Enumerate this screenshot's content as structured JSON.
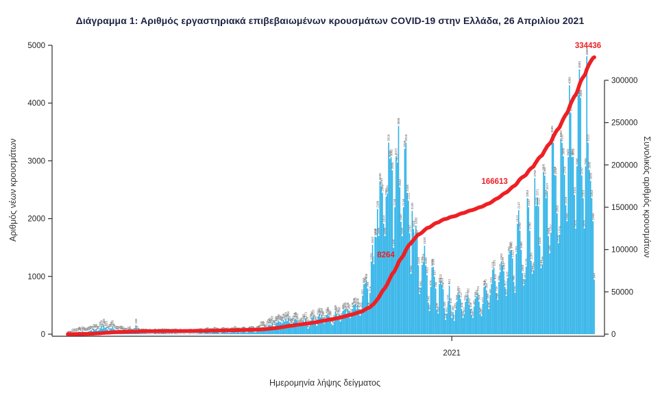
{
  "colors": {
    "bars": "#2fb3e8",
    "line": "#ed2024",
    "annotations": "#ed2024",
    "bar_labels": "#4d4d4d",
    "axis": "#2b2b2b",
    "tick_text": "#222222",
    "title": "#1b2240"
  },
  "chart_data": {
    "type": "bar",
    "title": "Διάγραμμα 1: Αριθμός εργαστηριακά επιβεβαιωμένων κρουσμάτων COVID-19 στην Ελλάδα, 26 Απριλίου 2021",
    "xlabel": "Ημερομηνία λήψης δείγματος",
    "ylabel_left": "Αριθμός νέων κρουσμάτων",
    "ylabel_right": "Συνολικός αριθμός κρουσμάτων",
    "x_start": "2020-02-26",
    "x_end": "2021-04-26",
    "ylim_left": [
      0,
      5000
    ],
    "ylim_right": [
      0,
      341000
    ],
    "grid": false,
    "legend": "none",
    "axes": {
      "left_ticks": [
        0,
        1000,
        2000,
        3000,
        4000,
        5000
      ],
      "right_ticks": [
        0,
        50000,
        100000,
        150000,
        200000,
        250000,
        300000
      ],
      "x_tick_labels": [
        {
          "label": "2021",
          "day_index": 310
        }
      ]
    },
    "annotations": [
      {
        "text": "8264",
        "fx": 0.604,
        "py": 375
      },
      {
        "text": "166613",
        "fx": 0.81,
        "py": 268
      },
      {
        "text": "334436",
        "fx": 0.987,
        "py": 70
      }
    ],
    "series": [
      {
        "name": "Αριθμός νέων κρουσμάτων",
        "type": "bar",
        "axis": "left",
        "values": [
          1,
          3,
          4,
          7,
          10,
          14,
          21,
          17,
          31,
          45,
          40,
          21,
          55,
          35,
          37,
          31,
          35,
          48,
          60,
          71,
          48,
          94,
          78,
          95,
          56,
          71,
          102,
          129,
          95,
          156,
          113,
          121,
          82,
          61,
          99,
          102,
          129,
          99,
          77,
          60,
          62,
          52,
          71,
          56,
          60,
          33,
          31,
          25,
          22,
          47,
          56,
          15,
          12,
          10,
          26,
          156,
          59,
          28,
          16,
          11,
          18,
          10,
          15,
          10,
          12,
          6,
          10,
          8,
          4,
          6,
          15,
          17,
          8,
          14,
          12,
          10,
          15,
          22,
          14,
          16,
          10,
          10,
          15,
          5,
          21,
          3,
          12,
          18,
          12,
          9,
          6,
          10,
          3,
          8,
          11,
          8,
          2,
          7,
          11,
          15,
          6,
          9,
          12,
          8,
          13,
          14,
          19,
          21,
          23,
          11,
          15,
          20,
          29,
          38,
          18,
          23,
          16,
          27,
          34,
          43,
          29,
          31,
          21,
          10,
          23,
          38,
          42,
          31,
          24,
          36,
          21,
          26,
          30,
          33,
          41,
          60,
          29,
          37,
          33,
          27,
          35,
          39,
          49,
          43,
          26,
          31,
          45,
          50,
          56,
          62,
          44,
          31,
          35,
          58,
          65,
          78,
          110,
          121,
          110,
          75,
          97,
          124,
          153,
          169,
          151,
          203,
          126,
          135,
          196,
          204,
          230,
          217,
          208,
          192,
          246,
          217,
          269,
          228,
          284,
          201,
          157,
          168,
          207,
          258,
          270,
          244,
          177,
          133,
          158,
          177,
          241,
          209,
          271,
          188,
          95,
          137,
          233,
          286,
          312,
          226,
          194,
          142,
          310,
          346,
          293,
          339,
          286,
          186,
          218,
          332,
          358,
          312,
          286,
          177,
          155,
          218,
          390,
          354,
          312,
          358,
          218,
          255,
          401,
          423,
          439,
          358,
          436,
          411,
          280,
          326,
          438,
          508,
          523,
          435,
          508,
          438,
          320,
          434,
          667,
          865,
          882,
          935,
          790,
          438,
          714,
          1259,
          1547,
          1211,
          1690,
          1678,
          2166,
          1698,
          2646,
          2561,
          2448,
          1914,
          1698,
          2383,
          2433,
          3316,
          3038,
          3062,
          2835,
          1498,
          2198,
          3073,
          2972,
          3605,
          2542,
          1947,
          1698,
          2198,
          3209,
          3316,
          2446,
          2311,
          1747,
          1044,
          2135,
          1823,
          1613,
          1882,
          1667,
          1194,
          698,
          809,
          1199,
          1250,
          1533,
          1190,
          1022,
          549,
          401,
          820,
          1156,
          1168,
          997,
          790,
          426,
          358,
          867,
          923,
          862,
          779,
          455,
          248,
          357,
          575,
          841,
          510,
          282,
          382,
          231,
          420,
          566,
          721,
          683,
          612,
          436,
          282,
          352,
          559,
          617,
          682,
          512,
          438,
          334,
          282,
          481,
          619,
          652,
          721,
          564,
          348,
          312,
          527,
          816,
          841,
          764,
          588,
          436,
          681,
          870,
          1121,
          1151,
          923,
          716,
          596,
          904,
          1076,
          1261,
          1193,
          1089,
          817,
          663,
          972,
          1381,
          1447,
          1460,
          1313,
          906,
          716,
          1391,
          1913,
          2147,
          1792,
          1460,
          1060,
          844,
          952,
          1170,
          2353,
          2197,
          1790,
          1269,
          1044,
          1105,
          2702,
          2219,
          2371,
          2215,
          1533,
          1142,
          1206,
          2805,
          2744,
          2353,
          2477,
          1698,
          1400,
          1757,
          3465,
          3313,
          2759,
          2747,
          2092,
          1576,
          1724,
          3383,
          3313,
          3080,
          2759,
          2234,
          1955,
          3065,
          4309,
          3833,
          3067,
          3070,
          2411,
          1829,
          2906,
          4138,
          4583,
          4089,
          2747,
          2353,
          1829,
          2906,
          4809,
          3313,
          2845,
          2655,
          2353,
          1955,
          944
        ]
      },
      {
        "name": "Συνολικός αριθμός κρουσμάτων",
        "type": "line",
        "axis": "right",
        "derived": "cumulative_sum_of_bars",
        "annotated_values": [
          8264,
          166613,
          334436
        ]
      }
    ]
  }
}
